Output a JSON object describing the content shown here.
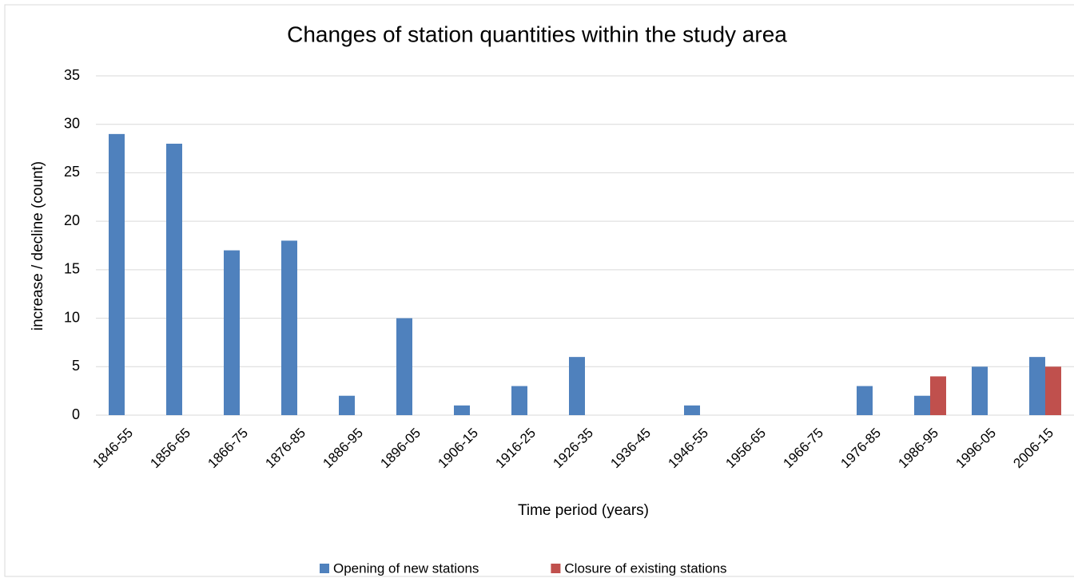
{
  "chart_data": {
    "type": "bar",
    "title": "Changes of station quantities within the study area",
    "x_label": "Time period (years)",
    "y_label": "increase / decline (count)",
    "categories": [
      "1846-55",
      "1856-65",
      "1866-75",
      "1876-85",
      "1886-95",
      "1896-05",
      "1906-15",
      "1916-25",
      "1926-35",
      "1936-45",
      "1946-55",
      "1956-65",
      "1966-75",
      "1976-85",
      "1986-95",
      "1996-05",
      "2006-15"
    ],
    "series": [
      {
        "name": "Opening of new stations",
        "color": "#4f81bd",
        "values": [
          29,
          28,
          17,
          18,
          2,
          10,
          1,
          3,
          6,
          0,
          1,
          0,
          0,
          3,
          2,
          5,
          6
        ]
      },
      {
        "name": "Closure of existing stations",
        "color": "#c0504d",
        "values": [
          0,
          0,
          0,
          0,
          0,
          0,
          0,
          0,
          0,
          0,
          0,
          0,
          0,
          0,
          4,
          0,
          5
        ]
      }
    ],
    "ylim": [
      0,
      35
    ],
    "yticks": [
      0,
      5,
      10,
      15,
      20,
      25,
      30,
      35
    ],
    "grid": true,
    "legend": "bottom"
  }
}
